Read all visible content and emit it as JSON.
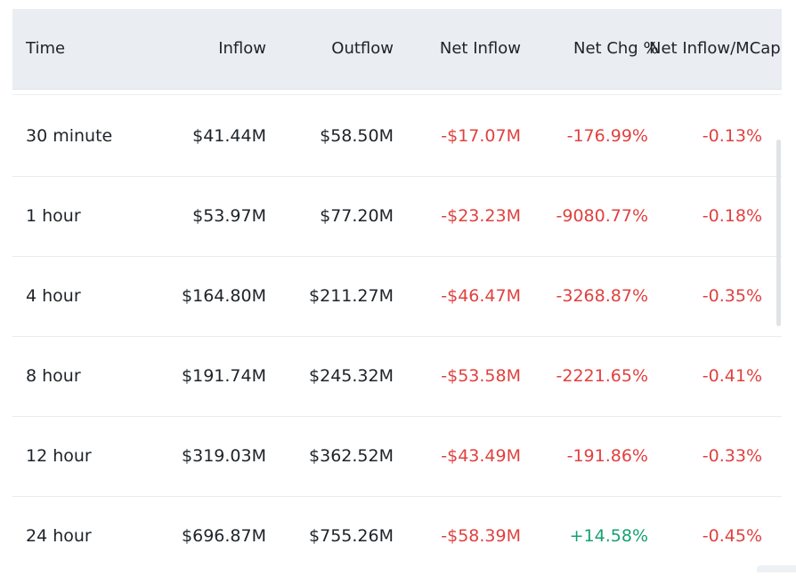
{
  "table": {
    "headers": {
      "time": "Time",
      "inflow": "Inflow",
      "outflow": "Outflow",
      "net_inflow": "Net Inflow",
      "net_chg": "Net Chg %",
      "net_inflow_mcap": "Net Inflow/MCap"
    },
    "rows": [
      {
        "time": "30 minute",
        "inflow": "$41.44M",
        "outflow": "$58.50M",
        "net_inflow": "-$17.07M",
        "net_chg": "-176.99%",
        "net_inflow_mcap": "-0.13%"
      },
      {
        "time": "1 hour",
        "inflow": "$53.97M",
        "outflow": "$77.20M",
        "net_inflow": "-$23.23M",
        "net_chg": "-9080.77%",
        "net_inflow_mcap": "-0.18%"
      },
      {
        "time": "4 hour",
        "inflow": "$164.80M",
        "outflow": "$211.27M",
        "net_inflow": "-$46.47M",
        "net_chg": "-3268.87%",
        "net_inflow_mcap": "-0.35%"
      },
      {
        "time": "8 hour",
        "inflow": "$191.74M",
        "outflow": "$245.32M",
        "net_inflow": "-$53.58M",
        "net_chg": "-2221.65%",
        "net_inflow_mcap": "-0.41%"
      },
      {
        "time": "12 hour",
        "inflow": "$319.03M",
        "outflow": "$362.52M",
        "net_inflow": "-$43.49M",
        "net_chg": "-191.86%",
        "net_inflow_mcap": "-0.33%"
      },
      {
        "time": "24 hour",
        "inflow": "$696.87M",
        "outflow": "$755.26M",
        "net_inflow": "-$58.39M",
        "net_chg": "+14.58%",
        "net_inflow_mcap": "-0.45%"
      }
    ]
  },
  "colors": {
    "negative": "#e0413f",
    "positive": "#16a074",
    "header_bg": "#eaedf2",
    "text": "#1e2329"
  }
}
